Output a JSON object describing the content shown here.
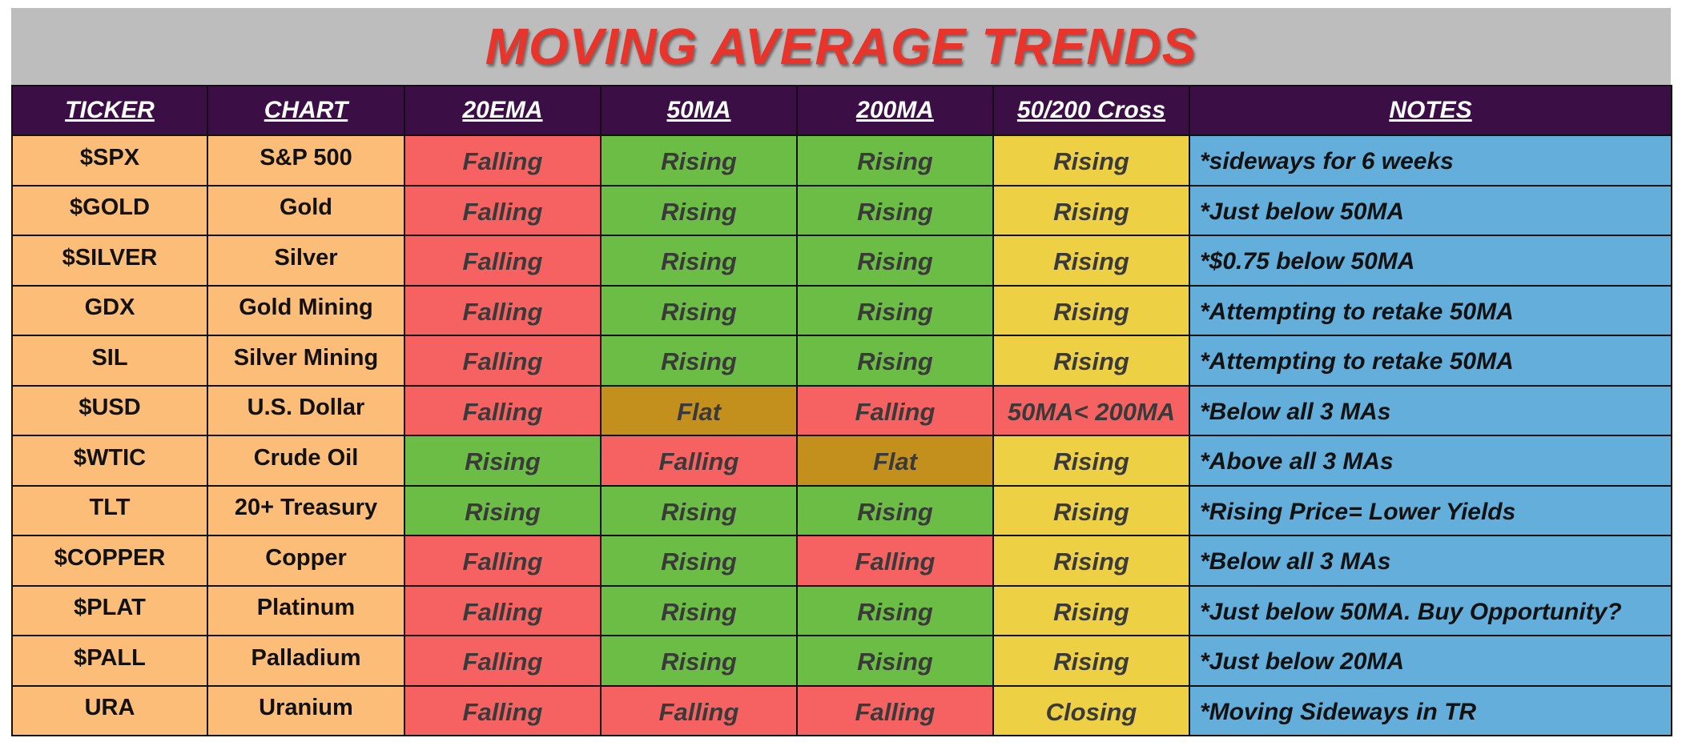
{
  "title": "MOVING AVERAGE TRENDS",
  "colors": {
    "title": "#e8342b",
    "header_bg": "#3b0f46",
    "ticker_bg": "#fbbd78",
    "falling": "#f66262",
    "rising": "#6cbd45",
    "flat": "#c4901d",
    "cross_rising": "#eed044",
    "notes_bg": "#63aedb"
  },
  "columns": [
    "TICKER",
    "CHART",
    "20EMA",
    "50MA",
    "200MA",
    "50/200 Cross",
    "NOTES"
  ],
  "rows": [
    {
      "ticker": "$SPX",
      "chart": "S&P 500",
      "ema20": "Falling",
      "ma50": "Rising",
      "ma200": "Rising",
      "cross": "Rising",
      "notes": "*sideways for 6 weeks"
    },
    {
      "ticker": "$GOLD",
      "chart": "Gold",
      "ema20": "Falling",
      "ma50": "Rising",
      "ma200": "Rising",
      "cross": "Rising",
      "notes": "*Just below 50MA"
    },
    {
      "ticker": "$SILVER",
      "chart": "Silver",
      "ema20": "Falling",
      "ma50": "Rising",
      "ma200": "Rising",
      "cross": "Rising",
      "notes": "*$0.75 below 50MA"
    },
    {
      "ticker": "GDX",
      "chart": "Gold Mining",
      "ema20": "Falling",
      "ma50": "Rising",
      "ma200": "Rising",
      "cross": "Rising",
      "notes": "*Attempting to retake 50MA"
    },
    {
      "ticker": "SIL",
      "chart": "Silver Mining",
      "ema20": "Falling",
      "ma50": "Rising",
      "ma200": "Rising",
      "cross": "Rising",
      "notes": "*Attempting to retake 50MA"
    },
    {
      "ticker": "$USD",
      "chart": "U.S. Dollar",
      "ema20": "Falling",
      "ma50": "Flat",
      "ma200": "Falling",
      "cross": "50MA< 200MA",
      "notes": "*Below all 3 MAs"
    },
    {
      "ticker": "$WTIC",
      "chart": "Crude Oil",
      "ema20": "Rising",
      "ma50": "Falling",
      "ma200": "Flat",
      "cross": "Rising",
      "notes": "*Above all 3 MAs"
    },
    {
      "ticker": "TLT",
      "chart": "20+ Treasury",
      "ema20": "Rising",
      "ma50": "Rising",
      "ma200": "Rising",
      "cross": "Rising",
      "notes": "*Rising Price= Lower Yields"
    },
    {
      "ticker": "$COPPER",
      "chart": "Copper",
      "ema20": "Falling",
      "ma50": "Rising",
      "ma200": "Falling",
      "cross": "Rising",
      "notes": "*Below all 3 MAs"
    },
    {
      "ticker": "$PLAT",
      "chart": "Platinum",
      "ema20": "Falling",
      "ma50": "Rising",
      "ma200": "Rising",
      "cross": "Rising",
      "notes": "*Just below 50MA. Buy Opportunity?"
    },
    {
      "ticker": "$PALL",
      "chart": "Palladium",
      "ema20": "Falling",
      "ma50": "Rising",
      "ma200": "Rising",
      "cross": "Rising",
      "notes": "*Just below 20MA"
    },
    {
      "ticker": "URA",
      "chart": "Uranium",
      "ema20": "Falling",
      "ma50": "Falling",
      "ma200": "Falling",
      "cross": "Closing",
      "notes": "*Moving Sideways in TR"
    }
  ]
}
